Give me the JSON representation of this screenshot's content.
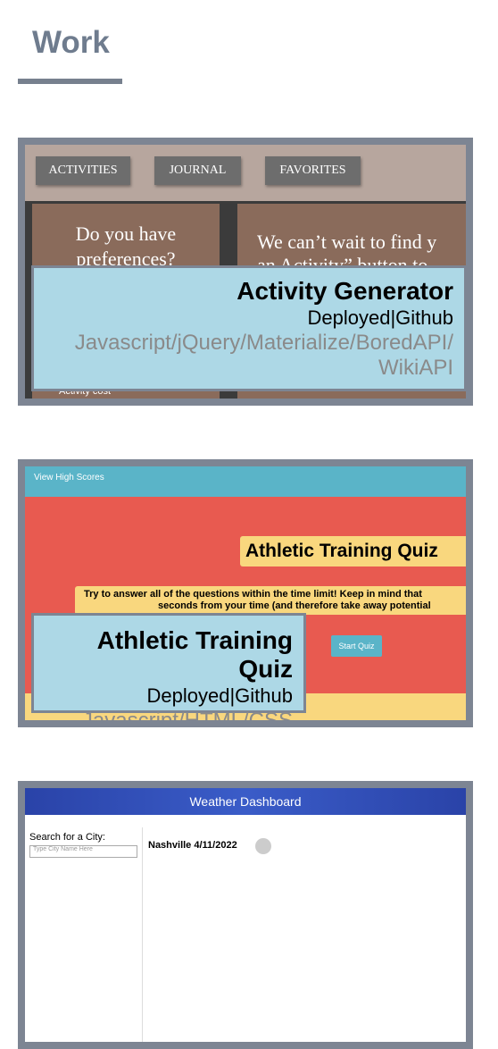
{
  "header": {
    "title": "Work"
  },
  "projects": [
    {
      "name": "Activity Generator",
      "links": [
        "Deployed",
        "Github"
      ],
      "link_separator": "|",
      "tech": [
        "Javascript",
        "jQuery",
        "Materialize",
        "BoredAPI",
        "WikiAPI"
      ],
      "tech_separator": "/",
      "preview": {
        "tabs": [
          "ACTIVITIES",
          "JOURNAL",
          "FAVORITES"
        ],
        "left_panel": "Do you have preferences?",
        "right_panel": "We can’t wait to find y",
        "right_panel_2": "an Activity” button to",
        "footer": "Activity cost"
      }
    },
    {
      "name": "Athletic Training Quiz",
      "links": [
        "Deployed",
        "Github"
      ],
      "link_separator": "|",
      "tech": [
        "Javascript",
        "HTML",
        "CSS"
      ],
      "tech_separator": "/",
      "preview": {
        "nav": "View High Scores",
        "heading": "Athletic Training Quiz",
        "instructions": "Try to answer all of the questions within the time limit! Keep in mind that",
        "instructions_2": "seconds from your time (and therefore take away potential",
        "button": "Start Quiz"
      }
    },
    {
      "preview": {
        "heading": "Weather Dashboard",
        "search_label": "Search for a City:",
        "search_placeholder": "Type City Name Here",
        "city": "Nashville 4/11/2022"
      }
    }
  ]
}
